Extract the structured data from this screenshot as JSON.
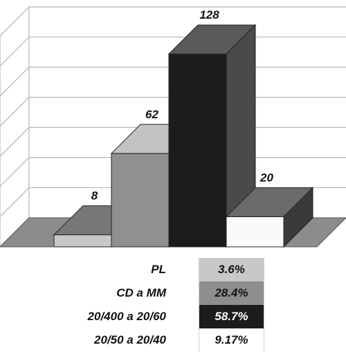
{
  "chart_data": {
    "type": "bar",
    "categories": [
      "PL",
      "CD a MM",
      "20/400 a 20/60",
      "20/50 a 20/40"
    ],
    "values": [
      8,
      62,
      128,
      20
    ],
    "data_labels": [
      "8",
      "62",
      "128",
      "20"
    ],
    "percentages": [
      "3.6%",
      "28.4%",
      "58.7%",
      "9.17%"
    ],
    "ylim": [
      0,
      140
    ],
    "grid": true,
    "three_d": true,
    "legend": "bottom (table)",
    "colors": {
      "PL": "#c8c8c8",
      "CD a MM": "#909090",
      "20/400 a 20/60": "#1c1c1c",
      "20/50 a 20/40": "#fafafa"
    },
    "floor_color": "#8c8c8c",
    "grid_color": "#b4b4b4"
  }
}
